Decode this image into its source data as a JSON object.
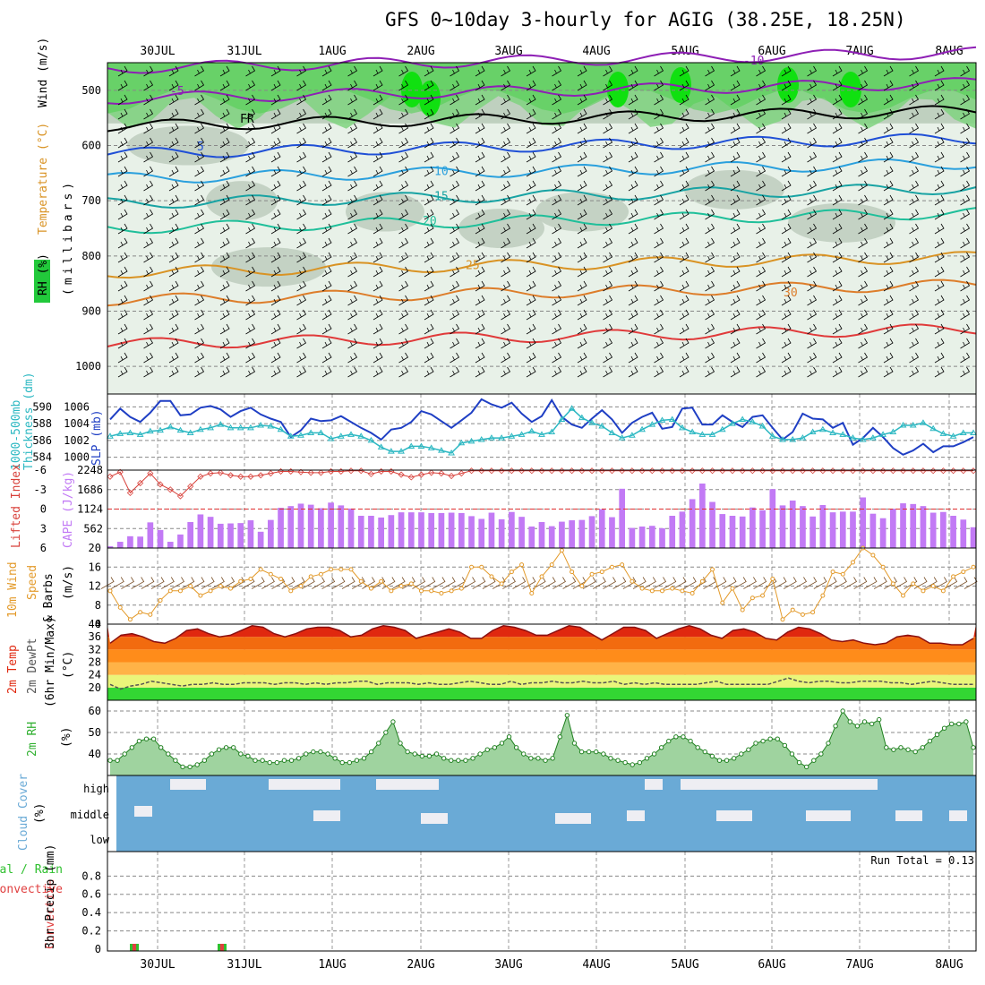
{
  "title": "GFS 0~10day 3-hourly for AGIG (38.25E, 18.25N)",
  "dates": [
    "30JUL",
    "31JUL",
    "1AUG",
    "2AUG",
    "3AUG",
    "4AUG",
    "5AUG",
    "6AUG",
    "7AUG",
    "8AUG"
  ],
  "colors": {
    "wind_barb": "#000000",
    "temp_neg": "#8e1fb5",
    "freezing": "#000000",
    "temp_mid": "#1f4fd6",
    "temp_warm": "#18a3a3",
    "temp_hot": "#d99324",
    "temp_max": "#e03a3a",
    "rh_high": "#22c93b",
    "rh_mid": "#c9d6c9",
    "cape": "#c27af5",
    "lifted": "#d8403a",
    "slp": "#1f3fc4",
    "thick": "#2cb8c2",
    "cloud": "#6aaad6",
    "precip_total": "#30c030",
    "precip_conv": "#e04040"
  },
  "panels": {
    "upper": {
      "ylabel_rh": "RH (%)",
      "ylabel_temp": "Temperature (°C)",
      "ylabel_wind": "Wind (m/s)",
      "ylabel_units": "(millibars)",
      "yticks": [
        "500",
        "600",
        "700",
        "800",
        "900",
        "1000"
      ]
    },
    "slp": {
      "label_left": "1000-500mb",
      "label_left2": "Thickness (dm)",
      "label_right": "SLP (mb)",
      "yticks_left": [
        "590",
        "588",
        "586",
        "584"
      ],
      "yticks_right": [
        "1006",
        "1004",
        "1002",
        "1000"
      ]
    },
    "cape": {
      "label_left": "Lifted Index",
      "label_right": "CAPE (J/kg)",
      "yticks_left": [
        "-6",
        "-3",
        "0",
        "3",
        "6"
      ],
      "yticks_right": [
        "2248",
        "1686",
        "1124",
        "562"
      ]
    },
    "wind": {
      "label1": "10m Wind",
      "label2": "Speed",
      "label3": "& Barbs",
      "units": "(m/s)",
      "yticks": [
        "20",
        "16",
        "12",
        "8",
        "4"
      ]
    },
    "temp": {
      "label1": "2m Temp",
      "label2": "2m DewPt",
      "label3": "(6hr Min/Max)",
      "units": "(°C)",
      "yticks": [
        "40",
        "36",
        "32",
        "28",
        "24",
        "20"
      ]
    },
    "rh": {
      "label": "2m RH",
      "units": "(%)",
      "yticks": [
        "60",
        "50",
        "40"
      ]
    },
    "cloud": {
      "label": "Cloud Cover",
      "units": "(%)",
      "levels": [
        "high",
        "middle",
        "low"
      ]
    },
    "precip": {
      "label1": "Total / Rain",
      "label2": "Convective",
      "units": "3hr Precip (mm)",
      "yticks": [
        "0.8",
        "0.6",
        "0.4",
        "0.2",
        "0"
      ],
      "run_total": "Run Total = 0.13"
    }
  },
  "chart_data": [
    {
      "type": "line",
      "title": "GFS 0~10day 3-hourly for AGIG (38.25E, 18.25N)",
      "ylabel": "millibars",
      "series": [
        {
          "name": "Temperature -10",
          "values": [
            460
          ]
        },
        {
          "name": "Temperature -5",
          "values": [
            505,
            540
          ]
        },
        {
          "name": "Freezing level (FR)",
          "values": [
            565,
            570
          ]
        },
        {
          "name": "Temperature 5",
          "values": [
            620,
            610
          ]
        },
        {
          "name": "Temperature 10",
          "values": [
            670,
            645
          ]
        },
        {
          "name": "Temperature 15",
          "values": [
            715,
            685
          ]
        },
        {
          "name": "Temperature 20",
          "values": [
            770,
            730
          ]
        },
        {
          "name": "Temperature 25",
          "values": [
            840,
            820
          ]
        },
        {
          "name": "Temperature 30",
          "values": [
            900,
            870
          ]
        }
      ],
      "ylim": [
        1050,
        450
      ]
    },
    {
      "type": "line",
      "title": "1000-500mb Thickness / SLP",
      "series": [
        {
          "name": "SLP (mb)",
          "values": [
            1004.5,
            1005.8,
            1004.8,
            1004.2,
            1005.3,
            1006.7,
            1006.7,
            1005,
            1005.1,
            1005.9,
            1006.1,
            1005.7,
            1004.8,
            1005.5,
            1005.9,
            1005.1,
            1004.6,
            1004.2,
            1002.4,
            1003.2,
            1004.6,
            1004.3,
            1004.4,
            1004.9,
            1004.2,
            1003.5,
            1002.9,
            1002.1,
            1003.3,
            1003.5,
            1004.2,
            1005.5,
            1005.1,
            1004.3,
            1003.5,
            1004.4,
            1005.3,
            1006.9,
            1006.3,
            1005.9,
            1006.5,
            1005.2,
            1004.2,
            1004.9,
            1006.8,
            1004.8,
            1003.9,
            1003.5,
            1004.6,
            1005.6,
            1004.5,
            1002.9,
            1004.1,
            1004.8,
            1005.3,
            1003.4,
            1003.6,
            1005.8,
            1005.9,
            1003.9,
            1003.9,
            1005.0,
            1004.2,
            1003.6,
            1004.8,
            1005.0,
            1003.5,
            1002.1,
            1003.0,
            1005.2,
            1004.6,
            1004.5,
            1003.5,
            1004.1,
            1001.5,
            1002.3,
            1003.5,
            1002.4,
            1001.1,
            1000.3,
            1000.8,
            1001.6,
            1000.6,
            1001.3,
            1001.3,
            1001.8,
            1002.4
          ]
        },
        {
          "name": "Thickness (dm)",
          "values": [
            586.5,
            586.8,
            586.9,
            586.7,
            587.1,
            587.2,
            587.6,
            587.2,
            586.9,
            587.3,
            587.5,
            587.9,
            587.5,
            587.5,
            587.5,
            587.8,
            587.7,
            587.3,
            586.5,
            586.6,
            586.9,
            586.9,
            586.2,
            586.5,
            586.7,
            586.5,
            586,
            585.2,
            584.7,
            584.7,
            585.3,
            585.3,
            585.1,
            584.8,
            584.5,
            585.7,
            585.9,
            586.1,
            586.3,
            586.3,
            586.5,
            586.7,
            587.1,
            586.7,
            587,
            588.5,
            589.8,
            588.7,
            588.1,
            587.7,
            586.9,
            586.3,
            586.6,
            587.3,
            587.9,
            588.4,
            588.5,
            587.5,
            587,
            586.7,
            586.7,
            587.3,
            588,
            588.5,
            588.2,
            587.7,
            586.5,
            586.1,
            586.1,
            586.3,
            587,
            587.3,
            586.9,
            586.7,
            586.3,
            586.1,
            586.3,
            586.7,
            587,
            587.8,
            587.8,
            588.1,
            587.4,
            586.8,
            586.5,
            586.9,
            586.9
          ]
        }
      ],
      "ylim": [
        583,
        591
      ]
    },
    {
      "type": "bar",
      "title": "Lifted Index / CAPE",
      "series": [
        {
          "name": "CAPE (J/kg)",
          "values": [
            50,
            180,
            340,
            330,
            740,
            520,
            180,
            390,
            750,
            970,
            900,
            700,
            710,
            720,
            800,
            470,
            810,
            1160,
            1210,
            1280,
            1250,
            1150,
            1310,
            1230,
            1140,
            930,
            930,
            880,
            950,
            1030,
            1030,
            1030,
            1010,
            1010,
            1020,
            1010,
            920,
            840,
            1020,
            830,
            1040,
            900,
            620,
            750,
            630,
            760,
            800,
            810,
            920,
            1120,
            890,
            1710,
            580,
            620,
            640,
            570,
            930,
            1050,
            1410,
            1860,
            1330,
            980,
            930,
            910,
            1170,
            1090,
            1700,
            1230,
            1370,
            1210,
            910,
            1240,
            1030,
            1050,
            1050,
            1460,
            990,
            860,
            1130,
            1290,
            1270,
            1210,
            1020,
            1040,
            930,
            820,
            600
          ]
        },
        {
          "name": "Lifted Index",
          "values": [
            -5,
            -5.7,
            -2.5,
            -4,
            -5.5,
            -3.8,
            -3,
            -2,
            -3.5,
            -5,
            -5.5,
            -5.6,
            -5.2,
            -5,
            -5,
            -5.2,
            -5.5,
            -5.8,
            -5.8,
            -5.7,
            -5.6,
            -5.6,
            -5.8,
            -5.8,
            -5.9,
            -5.9,
            -5.4,
            -5.8,
            -5.8,
            -5.3,
            -4.9,
            -5.3,
            -5.6,
            -5.5,
            -5.1,
            -5.5,
            -5.9,
            -5.9,
            -5.9,
            -5.9,
            -5.9,
            -5.9,
            -5.9,
            -5.9,
            -5.9,
            -5.9,
            -5.9,
            -5.9,
            -5.9,
            -5.9,
            -5.9,
            -5.9,
            -5.9,
            -5.9,
            -5.9,
            -5.9,
            -5.9,
            -5.9,
            -5.9,
            -5.9,
            -5.9,
            -5.9,
            -5.9,
            -5.9,
            -5.9,
            -5.9,
            -5.9,
            -5.9,
            -5.9,
            -5.9,
            -5.9,
            -5.9,
            -5.9,
            -5.9,
            -5.9,
            -5.9,
            -5.9,
            -5.9,
            -5.9,
            -5.9,
            -5.9,
            -5.9,
            -5.9,
            -5.9,
            -5.9,
            -5.9,
            -5.9
          ]
        }
      ],
      "ylim_left": [
        6,
        -6
      ],
      "ylim_right": [
        0,
        2248
      ]
    },
    {
      "type": "line",
      "title": "10m Wind Speed & Barbs",
      "ylabel": "(m/s)",
      "series": [
        {
          "name": "Speed",
          "values": [
            11,
            7.5,
            5,
            6.5,
            6,
            9,
            11,
            11,
            12,
            10,
            11,
            12,
            11.5,
            13,
            13.5,
            15.5,
            14.5,
            13.5,
            11,
            12,
            14,
            14.5,
            15.5,
            15.5,
            15.5,
            13,
            11.5,
            13,
            11,
            12,
            12.5,
            11,
            11,
            10.5,
            11,
            11.5,
            16,
            16,
            14,
            12.5,
            15,
            16.5,
            10.5,
            14,
            16.5,
            19.5,
            15,
            12,
            14.5,
            15,
            16,
            16.5,
            13,
            11.5,
            11,
            11,
            11.5,
            11,
            10.5,
            13,
            15.5,
            8.5,
            11.5,
            7,
            9.5,
            10,
            13.5,
            5,
            7,
            6,
            6.5,
            10,
            15,
            14.5,
            17,
            20,
            18.5,
            16,
            12.5,
            10,
            12.5,
            11,
            12,
            11,
            14,
            15,
            16
          ]
        }
      ],
      "ylim": [
        4,
        20
      ]
    },
    {
      "type": "area",
      "title": "2m Temp / 2m DewPt (6hr Min/Max)",
      "ylabel": "(°C)",
      "series": [
        {
          "name": "2m Temp",
          "values": [
            34,
            36.5,
            37,
            36,
            34.5,
            34,
            35.5,
            38,
            38.5,
            37,
            36,
            36.5,
            38,
            39.5,
            39,
            37,
            36,
            37,
            38.5,
            39,
            39,
            38,
            36,
            36.5,
            38.5,
            39.5,
            39,
            38,
            35.5,
            36.5,
            37.5,
            38.5,
            37.5,
            35.5,
            35.5,
            38,
            39.5,
            39,
            38,
            36.5,
            36.5,
            38,
            39.5,
            39,
            37,
            35,
            37,
            39,
            39,
            38,
            35.5,
            37,
            38.5,
            39.5,
            38.5,
            36.5,
            35.5,
            38,
            38.5,
            37.5,
            35.5,
            35,
            37.5,
            39,
            38.5,
            37,
            35,
            34.5,
            35,
            34,
            33.5,
            34,
            36,
            36.5,
            36,
            34,
            34,
            33.5,
            33.5,
            35.5
          ]
        },
        {
          "name": "2m DewPt",
          "values": [
            21,
            19.5,
            20.5,
            21,
            22,
            21.5,
            21,
            20.5,
            21,
            21,
            21.5,
            21,
            21,
            21.5,
            21.5,
            21.5,
            21,
            21.5,
            21.5,
            21,
            21.5,
            21,
            21.5,
            21.5,
            22,
            22,
            21,
            21.5,
            21.5,
            21.5,
            21,
            21.5,
            21,
            21,
            21.5,
            22,
            21.5,
            21,
            21,
            22,
            21,
            21.5,
            21.5,
            22,
            21.5,
            21.5,
            22,
            21.5,
            21.5,
            22,
            21,
            21.5,
            21,
            21.5,
            21,
            21,
            21,
            21,
            21.5,
            22,
            21,
            21,
            21,
            21,
            21,
            22,
            23,
            22,
            21.5,
            22,
            22,
            21.5,
            21.5,
            22,
            22,
            22,
            21.5,
            21.5,
            21,
            21.5,
            22,
            21.5,
            21,
            21,
            21
          ]
        }
      ],
      "ylim": [
        16,
        40
      ]
    },
    {
      "type": "area",
      "title": "2m RH",
      "ylabel": "(%)",
      "series": [
        {
          "name": "2m RH",
          "values": [
            37,
            37,
            40,
            43,
            46,
            47,
            47,
            43,
            40,
            37,
            34,
            34,
            35,
            37,
            40,
            42,
            43,
            43,
            40,
            39,
            37,
            37,
            36,
            36,
            37,
            37,
            38,
            40,
            41,
            41,
            40,
            38,
            36,
            36,
            37,
            38,
            41,
            45,
            50,
            55,
            45,
            41,
            40,
            39,
            39,
            40,
            38,
            37,
            37,
            37,
            38,
            40,
            42,
            43,
            45,
            48,
            43,
            40,
            38,
            38,
            37,
            38,
            48,
            58,
            45,
            41,
            41,
            41,
            40,
            38,
            37,
            36,
            35,
            36,
            38,
            40,
            43,
            46,
            48,
            48,
            46,
            43,
            41,
            39,
            37,
            37,
            38,
            40,
            42,
            45,
            46,
            47,
            47,
            44,
            40,
            36,
            34,
            37,
            40,
            45,
            53,
            60,
            55,
            53,
            55,
            54,
            56,
            43,
            42,
            43,
            42,
            41,
            43,
            46,
            49,
            52,
            54,
            54,
            55,
            43
          ]
        }
      ],
      "ylim": [
        30,
        65
      ]
    },
    {
      "type": "heatmap",
      "title": "Cloud Cover",
      "ylabel": "(%)",
      "series": [
        {
          "name": "high",
          "values": []
        },
        {
          "name": "middle",
          "values": []
        },
        {
          "name": "low",
          "values": []
        }
      ]
    },
    {
      "type": "bar",
      "title": "3hr Precip (mm)",
      "ylabel": "3hr Precip (mm)",
      "x": [
        "30JUL",
        "31JUL"
      ],
      "series": [
        {
          "name": "Total / Rain",
          "values": [
            0.01,
            0.01
          ]
        },
        {
          "name": "Convective",
          "values": [
            0.01,
            0.01
          ]
        }
      ],
      "ylim": [
        0,
        1
      ]
    }
  ]
}
